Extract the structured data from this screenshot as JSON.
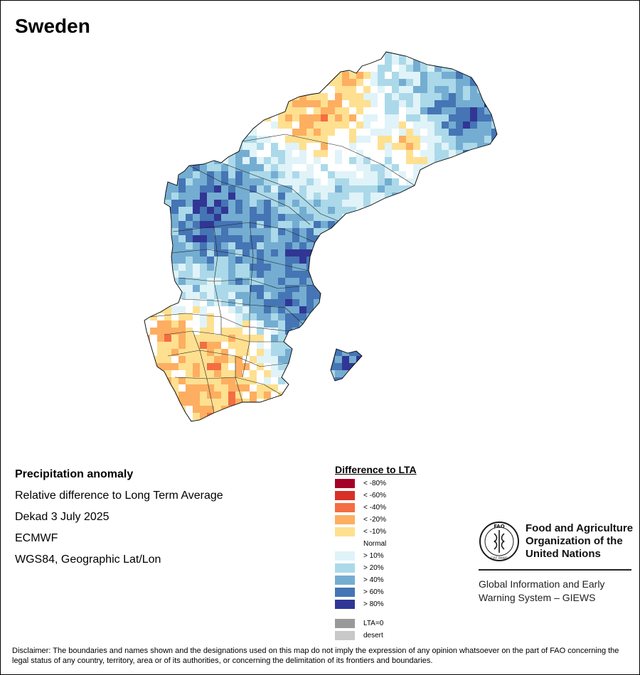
{
  "title": "Sweden",
  "info": {
    "heading": "Precipitation anomaly",
    "line1": "Relative difference to Long Term Average",
    "line2": "Dekad 3 July 2025",
    "line3": "ECMWF",
    "line4": "WGS84, Geographic Lat/Lon"
  },
  "legend": {
    "title": "Difference to LTA",
    "items": [
      {
        "label": "< -80%",
        "color": "#a50026"
      },
      {
        "label": "< -60%",
        "color": "#d73027"
      },
      {
        "label": "< -40%",
        "color": "#f46d43"
      },
      {
        "label": "< -20%",
        "color": "#fdae61"
      },
      {
        "label": "< -10%",
        "color": "#fee090"
      },
      {
        "label": "Normal",
        "color": "#ffffff"
      },
      {
        "label": "> 10%",
        "color": "#e0f3f8"
      },
      {
        "label": "> 20%",
        "color": "#abd9e9"
      },
      {
        "label": "> 40%",
        "color": "#74add1"
      },
      {
        "label": "> 60%",
        "color": "#4575b4"
      },
      {
        "label": "> 80%",
        "color": "#313695"
      }
    ],
    "extra": [
      {
        "label": "LTA=0",
        "color": "#999999"
      },
      {
        "label": "desert",
        "color": "#c8c8c8"
      }
    ]
  },
  "fao": {
    "name": "Food and Agriculture Organization of the United Nations",
    "logo_top": "FAO",
    "logo_bottom": "FIAT PANIS",
    "giews": "Global Information and Early Warning System – GIEWS"
  },
  "disclaimer": "Disclaimer: The boundaries and names shown and the designations used on this map do not imply the expression of any opinion whatsoever on the part of FAO concerning the legal status of any country, territory, area or of its authorities, or concerning the delimitation of its frontiers and boundaries."
}
